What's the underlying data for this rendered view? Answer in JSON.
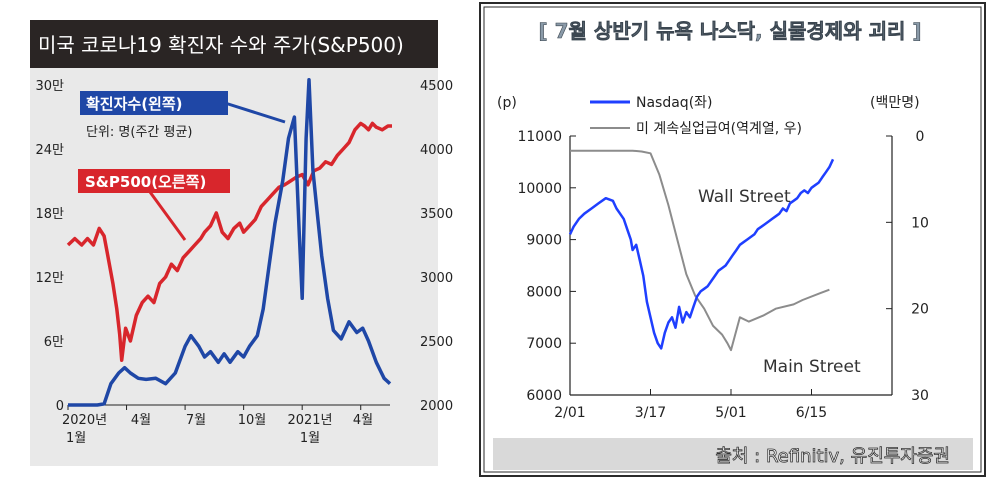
{
  "left_panel": {
    "title": "미국 코로나19 확진자 수와 주가(S&P500)",
    "annotation_cases": "확진자수(왼쪽)",
    "annotation_unit": "단위: 명(주간 평균)",
    "annotation_sp": "S&P500(오른쪽)",
    "x_labels": [
      "2020년",
      "1월",
      "4월",
      "7월",
      "10월",
      "2021년",
      "1월",
      "4월"
    ],
    "colors": {
      "background": "#e9e9e9",
      "header": "#2a2524",
      "cases_line": "#1f47a6",
      "sp_line": "#d8262c",
      "callout_blue": "#1f47a6",
      "callout_red": "#d8262c"
    }
  },
  "right_panel": {
    "title": "[ 7월 상반기 뉴욕 나스닥, 실물경제와 괴리 ]",
    "y_left_unit": "(p)",
    "y_right_unit": "(백만명)",
    "legend_nasdaq": "Nasdaq(좌)",
    "legend_claims": "미 계속실업급여(역계열, 우)",
    "annotation_wall": "Wall Street",
    "annotation_main": "Main Street",
    "source": "출처 : Refinitiv, 유진투자증권",
    "colors": {
      "nasdaq_line": "#1f3fff",
      "claims_line": "#8c8c8c",
      "title": "#8a9aa8",
      "frame": "#2a2a2a"
    }
  },
  "chart_data": [
    {
      "type": "line",
      "title": "미국 코로나19 확진자 수와 주가(S&P500)",
      "x_ticks": [
        "2020년 1월",
        "4월",
        "7월",
        "10월",
        "2021년 1월",
        "4월"
      ],
      "x_tick_positions": [
        0,
        3,
        6,
        9,
        12,
        15
      ],
      "x_range": [
        0,
        16.5
      ],
      "y_left": {
        "unit": "명(주간 평균)",
        "ticks": [
          0,
          60000,
          120000,
          180000,
          240000,
          300000
        ],
        "tick_labels": [
          "0",
          "6만",
          "12만",
          "18만",
          "24만",
          "30만"
        ],
        "range": [
          0,
          300000
        ]
      },
      "y_right": {
        "ticks": [
          2000,
          2500,
          3000,
          3500,
          4000,
          4500
        ],
        "tick_labels": [
          "2000",
          "2500",
          "3000",
          "3500",
          "4000",
          "4500"
        ],
        "range": [
          2000,
          4500
        ]
      },
      "series": [
        {
          "name": "확진자수(왼쪽)",
          "axis": "left",
          "points": [
            [
              0,
              0
            ],
            [
              1,
              0
            ],
            [
              1.5,
              0
            ],
            [
              1.85,
              1000
            ],
            [
              2.2,
              20000
            ],
            [
              2.6,
              30000
            ],
            [
              2.9,
              35000
            ],
            [
              3.2,
              30000
            ],
            [
              3.6,
              25000
            ],
            [
              4,
              24000
            ],
            [
              4.5,
              25000
            ],
            [
              5,
              20000
            ],
            [
              5.5,
              30000
            ],
            [
              6,
              55000
            ],
            [
              6.3,
              65000
            ],
            [
              6.7,
              55000
            ],
            [
              7,
              45000
            ],
            [
              7.3,
              50000
            ],
            [
              7.7,
              40000
            ],
            [
              8,
              48000
            ],
            [
              8.3,
              40000
            ],
            [
              8.7,
              50000
            ],
            [
              9,
              45000
            ],
            [
              9.3,
              55000
            ],
            [
              9.7,
              65000
            ],
            [
              10,
              90000
            ],
            [
              10.3,
              130000
            ],
            [
              10.6,
              170000
            ],
            [
              11,
              210000
            ],
            [
              11.3,
              250000
            ],
            [
              11.6,
              270000
            ],
            [
              11.85,
              160000
            ],
            [
              12,
              100000
            ],
            [
              12.2,
              250000
            ],
            [
              12.35,
              305000
            ],
            [
              12.55,
              220000
            ],
            [
              12.8,
              175000
            ],
            [
              13,
              140000
            ],
            [
              13.3,
              100000
            ],
            [
              13.6,
              70000
            ],
            [
              14,
              62000
            ],
            [
              14.4,
              78000
            ],
            [
              14.8,
              68000
            ],
            [
              15.1,
              72000
            ],
            [
              15.4,
              60000
            ],
            [
              15.8,
              40000
            ],
            [
              16.2,
              25000
            ],
            [
              16.5,
              20000
            ]
          ]
        },
        {
          "name": "S&P500(오른쪽)",
          "axis": "right",
          "points": [
            [
              0,
              3250
            ],
            [
              0.35,
              3300
            ],
            [
              0.7,
              3250
            ],
            [
              1,
              3300
            ],
            [
              1.3,
              3250
            ],
            [
              1.6,
              3380
            ],
            [
              1.85,
              3320
            ],
            [
              2,
              3200
            ],
            [
              2.3,
              2950
            ],
            [
              2.5,
              2750
            ],
            [
              2.65,
              2550
            ],
            [
              2.75,
              2350
            ],
            [
              2.95,
              2600
            ],
            [
              3.2,
              2500
            ],
            [
              3.5,
              2700
            ],
            [
              3.8,
              2800
            ],
            [
              4.1,
              2850
            ],
            [
              4.4,
              2800
            ],
            [
              4.7,
              2950
            ],
            [
              5,
              3000
            ],
            [
              5.3,
              3100
            ],
            [
              5.6,
              3050
            ],
            [
              5.9,
              3150
            ],
            [
              6.2,
              3200
            ],
            [
              6.5,
              3250
            ],
            [
              6.8,
              3300
            ],
            [
              7,
              3350
            ],
            [
              7.3,
              3400
            ],
            [
              7.6,
              3500
            ],
            [
              7.9,
              3350
            ],
            [
              8.2,
              3300
            ],
            [
              8.5,
              3380
            ],
            [
              8.8,
              3420
            ],
            [
              9,
              3350
            ],
            [
              9.3,
              3400
            ],
            [
              9.6,
              3450
            ],
            [
              9.9,
              3550
            ],
            [
              10.2,
              3600
            ],
            [
              10.5,
              3650
            ],
            [
              10.8,
              3700
            ],
            [
              11.1,
              3720
            ],
            [
              11.4,
              3750
            ],
            [
              11.7,
              3780
            ],
            [
              12,
              3800
            ],
            [
              12.3,
              3720
            ],
            [
              12.6,
              3830
            ],
            [
              12.9,
              3850
            ],
            [
              13.2,
              3900
            ],
            [
              13.5,
              3880
            ],
            [
              13.8,
              3950
            ],
            [
              14.1,
              4000
            ],
            [
              14.4,
              4050
            ],
            [
              14.7,
              4150
            ],
            [
              15,
              4200
            ],
            [
              15.2,
              4180
            ],
            [
              15.4,
              4150
            ],
            [
              15.6,
              4200
            ],
            [
              15.8,
              4170
            ],
            [
              16.1,
              4150
            ],
            [
              16.4,
              4180
            ],
            [
              16.6,
              4180
            ]
          ]
        }
      ],
      "legend": "annotations on plot",
      "grid": false
    },
    {
      "type": "line",
      "title": "[ 7월 상반기 뉴욕 나스닥, 실물경제와 괴리 ]",
      "x_ticks": [
        "2/01",
        "3/17",
        "5/01",
        "6/15"
      ],
      "x_tick_positions": [
        0,
        45,
        90,
        135
      ],
      "x_range": [
        0,
        180
      ],
      "y_left": {
        "label": "(p)",
        "ticks": [
          6000,
          7000,
          8000,
          9000,
          10000,
          11000
        ],
        "range": [
          6000,
          11000
        ]
      },
      "y_right": {
        "label": "(백만명)",
        "ticks": [
          0,
          10,
          20,
          30
        ],
        "range": [
          0,
          30
        ],
        "inverted": true
      },
      "series": [
        {
          "name": "Nasdaq(좌)",
          "axis": "left",
          "points": [
            [
              0,
              9100
            ],
            [
              2,
              9250
            ],
            [
              5,
              9400
            ],
            [
              8,
              9500
            ],
            [
              12,
              9600
            ],
            [
              16,
              9700
            ],
            [
              20,
              9800
            ],
            [
              24,
              9750
            ],
            [
              26,
              9600
            ],
            [
              28,
              9500
            ],
            [
              30,
              9400
            ],
            [
              32,
              9200
            ],
            [
              34,
              9000
            ],
            [
              35,
              8800
            ],
            [
              37,
              8900
            ],
            [
              39,
              8600
            ],
            [
              41,
              8300
            ],
            [
              43,
              7800
            ],
            [
              45,
              7500
            ],
            [
              47,
              7200
            ],
            [
              49,
              7000
            ],
            [
              51,
              6900
            ],
            [
              53,
              7200
            ],
            [
              55,
              7400
            ],
            [
              57,
              7500
            ],
            [
              59,
              7300
            ],
            [
              61,
              7700
            ],
            [
              63,
              7400
            ],
            [
              65,
              7600
            ],
            [
              67,
              7500
            ],
            [
              69,
              7700
            ],
            [
              71,
              7900
            ],
            [
              73,
              8000
            ],
            [
              75,
              8050
            ],
            [
              77,
              8100
            ],
            [
              79,
              8200
            ],
            [
              81,
              8300
            ],
            [
              83,
              8400
            ],
            [
              85,
              8450
            ],
            [
              87,
              8500
            ],
            [
              89,
              8600
            ],
            [
              91,
              8700
            ],
            [
              93,
              8800
            ],
            [
              95,
              8900
            ],
            [
              97,
              8950
            ],
            [
              99,
              9000
            ],
            [
              101,
              9050
            ],
            [
              103,
              9100
            ],
            [
              105,
              9200
            ],
            [
              107,
              9250
            ],
            [
              109,
              9300
            ],
            [
              111,
              9350
            ],
            [
              113,
              9400
            ],
            [
              115,
              9450
            ],
            [
              117,
              9500
            ],
            [
              119,
              9600
            ],
            [
              121,
              9550
            ],
            [
              123,
              9700
            ],
            [
              125,
              9750
            ],
            [
              127,
              9800
            ],
            [
              129,
              9900
            ],
            [
              131,
              9950
            ],
            [
              133,
              9900
            ],
            [
              135,
              10000
            ],
            [
              137,
              10050
            ],
            [
              139,
              10100
            ],
            [
              141,
              10200
            ],
            [
              143,
              10300
            ],
            [
              145,
              10400
            ],
            [
              147,
              10550
            ]
          ]
        },
        {
          "name": "미 계속실업급여(역계열, 우)",
          "axis": "right",
          "points": [
            [
              0,
              1.7
            ],
            [
              35,
              1.7
            ],
            [
              40,
              1.8
            ],
            [
              45,
              2.0
            ],
            [
              50,
              4.5
            ],
            [
              55,
              8.0
            ],
            [
              60,
              12.0
            ],
            [
              65,
              16.0
            ],
            [
              70,
              18.5
            ],
            [
              75,
              20.0
            ],
            [
              80,
              22.0
            ],
            [
              85,
              23.0
            ],
            [
              88,
              24.0
            ],
            [
              90,
              24.8
            ],
            [
              95,
              21.0
            ],
            [
              100,
              21.5
            ],
            [
              108,
              20.8
            ],
            [
              115,
              20.0
            ],
            [
              125,
              19.5
            ],
            [
              130,
              19.0
            ],
            [
              140,
              18.2
            ],
            [
              145,
              17.8
            ]
          ]
        }
      ],
      "legend": "top-left",
      "grid": false
    }
  ]
}
